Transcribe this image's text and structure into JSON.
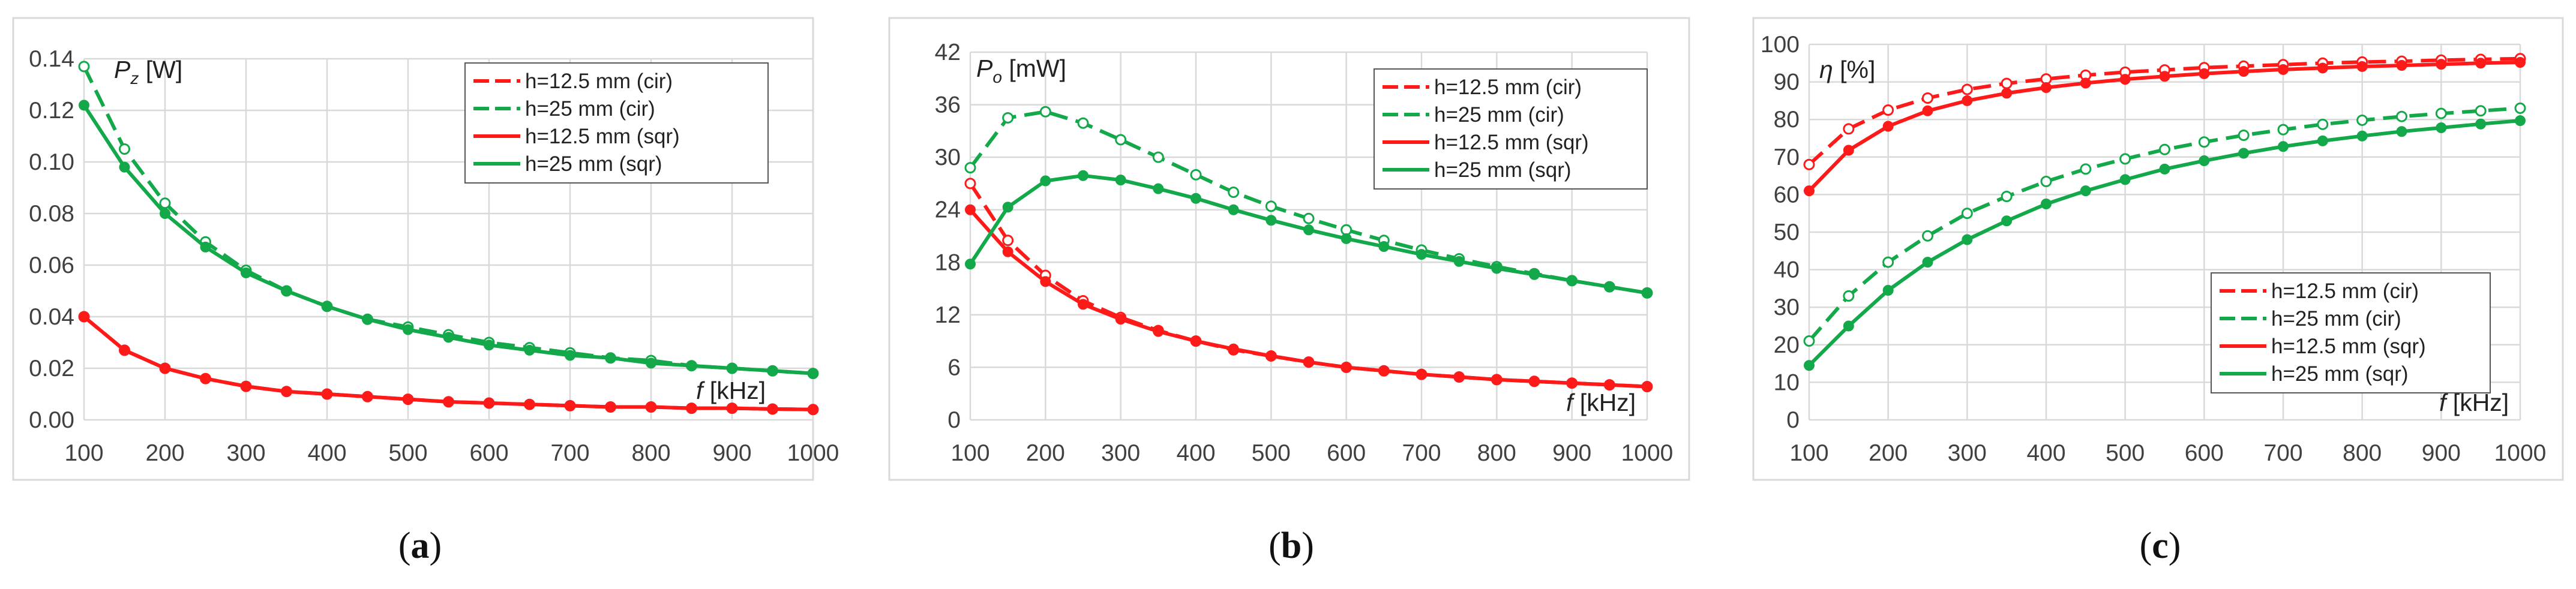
{
  "colors": {
    "red": "#ff1a1a",
    "green": "#13a84a",
    "grid": "#d9d9d9",
    "frame": "#d9d9d9",
    "text": "#404040"
  },
  "chart_data": [
    {
      "type": "line",
      "panel_label": "a",
      "ylabel_sym": "P",
      "ylabel_sub": "z",
      "ylabel_unit": "[W]",
      "xlabel_sym": "f",
      "xlabel_unit": "[kHz]",
      "xlim": [
        100,
        1000
      ],
      "xticks": [
        100,
        200,
        300,
        400,
        500,
        600,
        700,
        800,
        900,
        1000
      ],
      "ylim": [
        0,
        0.14
      ],
      "yticks": [
        "0.00",
        "0.02",
        "0.04",
        "0.06",
        "0.08",
        "0.10",
        "0.12",
        "0.14"
      ],
      "legend_position": "top-right",
      "x": [
        100,
        150,
        200,
        250,
        300,
        350,
        400,
        450,
        500,
        550,
        600,
        650,
        700,
        750,
        800,
        850,
        900,
        950,
        1000
      ],
      "series": [
        {
          "name": "h=12.5 mm (cir)",
          "color": "red",
          "dash": true,
          "values": [
            0.04,
            0.027,
            0.02,
            0.016,
            0.013,
            0.011,
            0.01,
            0.009,
            0.008,
            0.007,
            0.0065,
            0.006,
            0.0055,
            0.005,
            0.005,
            0.0045,
            0.0045,
            0.0042,
            0.004
          ]
        },
        {
          "name": "h=25 mm (cir)",
          "color": "green",
          "dash": true,
          "values": [
            0.137,
            0.105,
            0.084,
            0.069,
            0.058,
            0.05,
            0.044,
            0.039,
            0.036,
            0.033,
            0.03,
            0.028,
            0.026,
            0.024,
            0.023,
            0.021,
            0.02,
            0.019,
            0.018
          ]
        },
        {
          "name": "h=12.5 mm (sqr)",
          "color": "red",
          "dash": false,
          "values": [
            0.04,
            0.027,
            0.02,
            0.016,
            0.013,
            0.011,
            0.01,
            0.009,
            0.008,
            0.007,
            0.0065,
            0.006,
            0.0055,
            0.005,
            0.005,
            0.0045,
            0.0045,
            0.0042,
            0.004
          ]
        },
        {
          "name": "h=25 mm (sqr)",
          "color": "green",
          "dash": false,
          "values": [
            0.122,
            0.098,
            0.08,
            0.067,
            0.057,
            0.05,
            0.044,
            0.039,
            0.035,
            0.032,
            0.029,
            0.027,
            0.025,
            0.024,
            0.022,
            0.021,
            0.02,
            0.019,
            0.018
          ]
        }
      ]
    },
    {
      "type": "line",
      "panel_label": "b",
      "ylabel_sym": "P",
      "ylabel_sub": "o",
      "ylabel_unit": "[mW]",
      "xlabel_sym": "f",
      "xlabel_unit": "[kHz]",
      "xlim": [
        100,
        1000
      ],
      "xticks": [
        100,
        200,
        300,
        400,
        500,
        600,
        700,
        800,
        900,
        1000
      ],
      "ylim": [
        0,
        42
      ],
      "yticks": [
        "0",
        "6",
        "12",
        "18",
        "24",
        "30",
        "36",
        "42"
      ],
      "legend_position": "top-right",
      "x": [
        100,
        150,
        200,
        250,
        300,
        350,
        400,
        450,
        500,
        550,
        600,
        650,
        700,
        750,
        800,
        850,
        900,
        950,
        1000
      ],
      "series": [
        {
          "name": "h=12.5 mm (cir)",
          "color": "red",
          "dash": true,
          "values": [
            27.0,
            20.5,
            16.5,
            13.6,
            11.7,
            10.2,
            9.0,
            8.0,
            7.3,
            6.6,
            6.0,
            5.6,
            5.2,
            4.9,
            4.6,
            4.4,
            4.2,
            4.0,
            3.8
          ]
        },
        {
          "name": "h=25 mm (cir)",
          "color": "green",
          "dash": true,
          "values": [
            28.8,
            34.5,
            35.2,
            33.9,
            32.0,
            30.0,
            28.0,
            26.0,
            24.4,
            23.0,
            21.7,
            20.5,
            19.4,
            18.4,
            17.5,
            16.7,
            15.9,
            15.2,
            14.5
          ]
        },
        {
          "name": "h=12.5 mm (sqr)",
          "color": "red",
          "dash": false,
          "values": [
            24.0,
            19.2,
            15.8,
            13.2,
            11.5,
            10.1,
            9.0,
            8.1,
            7.3,
            6.6,
            6.0,
            5.6,
            5.2,
            4.9,
            4.6,
            4.4,
            4.2,
            4.0,
            3.8
          ]
        },
        {
          "name": "h=25 mm (sqr)",
          "color": "green",
          "dash": false,
          "values": [
            17.8,
            24.3,
            27.3,
            27.9,
            27.4,
            26.4,
            25.3,
            24.0,
            22.8,
            21.7,
            20.7,
            19.8,
            18.9,
            18.1,
            17.3,
            16.6,
            15.9,
            15.2,
            14.5
          ]
        }
      ]
    },
    {
      "type": "line",
      "panel_label": "c",
      "ylabel_sym": "η",
      "ylabel_sub": "",
      "ylabel_unit": "[%]",
      "xlabel_sym": "f",
      "xlabel_unit": "[kHz]",
      "xlim": [
        100,
        1000
      ],
      "xticks": [
        100,
        200,
        300,
        400,
        500,
        600,
        700,
        800,
        900,
        1000
      ],
      "ylim": [
        0,
        100
      ],
      "yticks": [
        "0",
        "10",
        "20",
        "30",
        "40",
        "50",
        "60",
        "70",
        "80",
        "90",
        "100"
      ],
      "legend_position": "bottom-center",
      "x": [
        100,
        150,
        200,
        250,
        300,
        350,
        400,
        450,
        500,
        550,
        600,
        650,
        700,
        750,
        800,
        850,
        900,
        950,
        1000
      ],
      "series": [
        {
          "name": "h=12.5 mm (cir)",
          "color": "red",
          "dash": true,
          "values": [
            68.0,
            77.5,
            82.5,
            85.7,
            88.0,
            89.6,
            90.8,
            91.8,
            92.6,
            93.2,
            93.8,
            94.2,
            94.6,
            95.0,
            95.3,
            95.5,
            95.8,
            96.0,
            96.2
          ]
        },
        {
          "name": "h=25 mm (cir)",
          "color": "green",
          "dash": true,
          "values": [
            21.0,
            33.0,
            42.0,
            49.0,
            55.0,
            59.5,
            63.5,
            66.8,
            69.5,
            72.0,
            74.0,
            75.8,
            77.3,
            78.7,
            79.8,
            80.8,
            81.6,
            82.3,
            83.0
          ]
        },
        {
          "name": "h=12.5 mm (sqr)",
          "color": "red",
          "dash": false,
          "values": [
            61.0,
            71.8,
            78.2,
            82.3,
            85.0,
            87.0,
            88.5,
            89.7,
            90.7,
            91.5,
            92.2,
            92.8,
            93.3,
            93.7,
            94.1,
            94.4,
            94.7,
            95.0,
            95.2
          ]
        },
        {
          "name": "h=25 mm (sqr)",
          "color": "green",
          "dash": false,
          "values": [
            14.5,
            25.0,
            34.5,
            42.0,
            48.0,
            53.0,
            57.5,
            61.0,
            64.0,
            66.8,
            69.0,
            71.0,
            72.8,
            74.3,
            75.6,
            76.8,
            77.8,
            78.8,
            79.7
          ]
        }
      ]
    }
  ]
}
